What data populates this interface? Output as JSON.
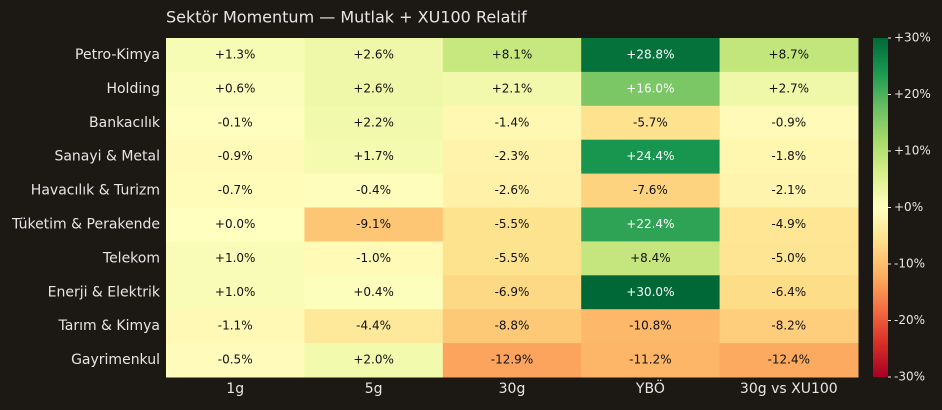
{
  "chart_data": {
    "type": "heatmap",
    "title": "Sektör Momentum — Mutlak + XU100 Relatif",
    "x_categories": [
      "1g",
      "5g",
      "30g",
      "YBÖ",
      "30g vs XU100"
    ],
    "y_categories": [
      "Petro-Kimya",
      "Holding",
      "Bankacılık",
      "Sanayi & Metal",
      "Havacılık & Turizm",
      "Tüketim & Perakende",
      "Telekom",
      "Enerji & Elektrik",
      "Tarım & Kimya",
      "Gayrimenkul"
    ],
    "values": [
      [
        1.3,
        2.6,
        8.1,
        28.8,
        8.7
      ],
      [
        0.6,
        2.6,
        2.1,
        16.0,
        2.7
      ],
      [
        -0.1,
        2.2,
        -1.4,
        -5.7,
        -0.9
      ],
      [
        -0.9,
        1.7,
        -2.3,
        24.4,
        -1.8
      ],
      [
        -0.7,
        -0.4,
        -2.6,
        -7.6,
        -2.1
      ],
      [
        0.0,
        -9.1,
        -5.5,
        22.4,
        -4.9
      ],
      [
        1.0,
        -1.0,
        -5.5,
        8.4,
        -5.0
      ],
      [
        1.0,
        0.4,
        -6.9,
        30.0,
        -6.4
      ],
      [
        -1.1,
        -4.4,
        -8.8,
        -10.8,
        -8.2
      ],
      [
        -0.5,
        2.0,
        -12.9,
        -11.2,
        -12.4
      ]
    ],
    "value_labels": [
      [
        "+1.3%",
        "+2.6%",
        "+8.1%",
        "+28.8%",
        "+8.7%"
      ],
      [
        "+0.6%",
        "+2.6%",
        "+2.1%",
        "+16.0%",
        "+2.7%"
      ],
      [
        "-0.1%",
        "+2.2%",
        "-1.4%",
        "-5.7%",
        "-0.9%"
      ],
      [
        "-0.9%",
        "+1.7%",
        "-2.3%",
        "+24.4%",
        "-1.8%"
      ],
      [
        "-0.7%",
        "-0.4%",
        "-2.6%",
        "-7.6%",
        "-2.1%"
      ],
      [
        "+0.0%",
        "-9.1%",
        "-5.5%",
        "+22.4%",
        "-4.9%"
      ],
      [
        "+1.0%",
        "-1.0%",
        "-5.5%",
        "+8.4%",
        "-5.0%"
      ],
      [
        "+1.0%",
        "+0.4%",
        "-6.9%",
        "+30.0%",
        "-6.4%"
      ],
      [
        "-1.1%",
        "-4.4%",
        "-8.8%",
        "-10.8%",
        "-8.2%"
      ],
      [
        "-0.5%",
        "+2.0%",
        "-12.9%",
        "-11.2%",
        "-12.4%"
      ]
    ],
    "clim": [
      -30,
      30
    ],
    "cticks": [
      {
        "value": 30,
        "label": "+30%"
      },
      {
        "value": 20,
        "label": "+20%"
      },
      {
        "value": 10,
        "label": "+10%"
      },
      {
        "value": 0,
        "label": "+0%"
      },
      {
        "value": -10,
        "label": "-10%"
      },
      {
        "value": -20,
        "label": "-20%"
      },
      {
        "value": -30,
        "label": "-30%"
      }
    ],
    "colormap": [
      "#a50026",
      "#d73027",
      "#f46d43",
      "#fdae61",
      "#fee08b",
      "#ffffbf",
      "#d9ef8b",
      "#a6d96a",
      "#66bd63",
      "#1a9850",
      "#006837"
    ]
  }
}
